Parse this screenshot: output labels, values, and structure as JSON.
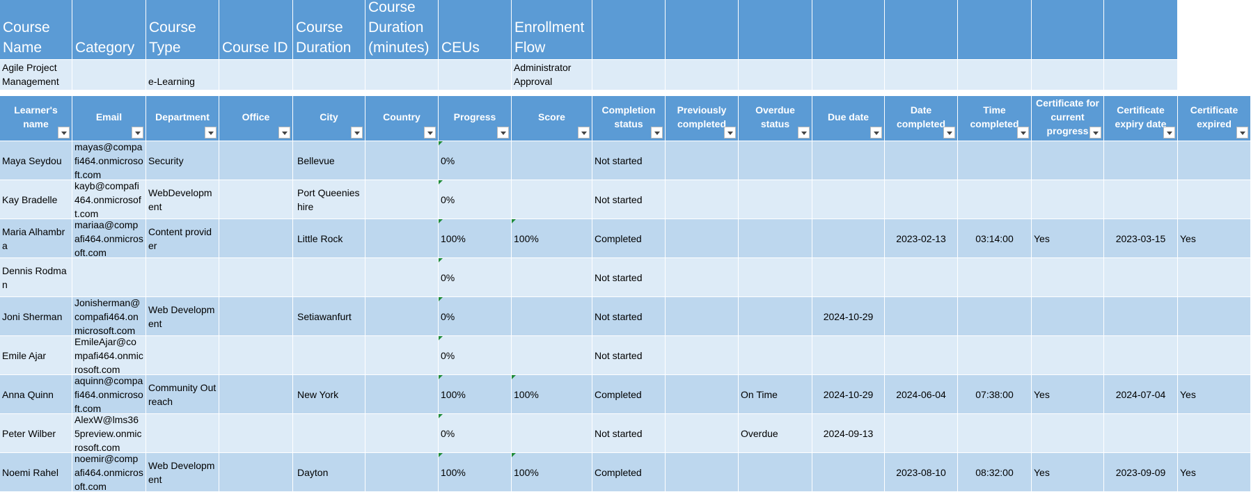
{
  "course": {
    "fields": [
      {
        "label": "Course Name",
        "value": "Agile Project Management"
      },
      {
        "label": "Category"
      },
      {
        "label": "Course Type",
        "value": "e-Learning"
      },
      {
        "label": "Course ID"
      },
      {
        "label": "Course Duration"
      },
      {
        "label": "Course Duration (minutes)"
      },
      {
        "label": "CEUs"
      },
      {
        "label": "Enrollment Flow",
        "value": "Administrator Approval"
      }
    ]
  },
  "learners": {
    "columns": [
      "Learner's name",
      "Email",
      "Department",
      "Office",
      "City",
      "Country",
      "Progress",
      "Score",
      "Completion status",
      "Previously completed",
      "Overdue status",
      "Due date",
      "Date completed",
      "Time completed",
      "Certificate for current progress",
      "Certificate expiry date",
      "Certificate expired"
    ],
    "rows": [
      [
        "Maya Seydou",
        "mayas@compafi464.onmicrosoft.com",
        "Security",
        null,
        "Bellevue",
        null,
        "0%",
        null,
        "Not started",
        null,
        null,
        null,
        null,
        null,
        null,
        null,
        null
      ],
      [
        "Kay Bradelle",
        "kayb@compafi464.onmicrosoft.com",
        "WebDevelopment",
        null,
        "Port Queenieshire",
        null,
        "0%",
        null,
        "Not started",
        null,
        null,
        null,
        null,
        null,
        null,
        null,
        null
      ],
      [
        "Maria Alhambra",
        "mariaa@compafi464.onmicrosoft.com",
        "Content provider",
        null,
        "Little Rock",
        null,
        "100%",
        "100%",
        "Completed",
        null,
        null,
        null,
        "2023-02-13",
        "03:14:00",
        "Yes",
        "2023-03-15",
        "Yes"
      ],
      [
        "Dennis Rodman",
        null,
        null,
        null,
        null,
        null,
        "0%",
        null,
        "Not started",
        null,
        null,
        null,
        null,
        null,
        null,
        null,
        null
      ],
      [
        "Joni Sherman",
        "Jonisherman@compafi464.onmicrosoft.com",
        "Web Development",
        null,
        "Setiawanfurt",
        null,
        "0%",
        null,
        "Not started",
        null,
        null,
        "2024-10-29",
        null,
        null,
        null,
        null,
        null
      ],
      [
        "Emile Ajar",
        "EmileAjar@compafi464.onmicrosoft.com",
        null,
        null,
        null,
        null,
        "0%",
        null,
        "Not started",
        null,
        null,
        null,
        null,
        null,
        null,
        null,
        null
      ],
      [
        "Anna Quinn",
        "aquinn@compafi464.onmicrosoft.com",
        "Community Outreach",
        null,
        "New York",
        null,
        "100%",
        "100%",
        "Completed",
        null,
        "On Time",
        "2024-10-29",
        "2024-06-04",
        "07:38:00",
        "Yes",
        "2024-07-04",
        "Yes"
      ],
      [
        "Peter Wilber",
        "AlexW@lms365preview.onmicrosoft.com",
        null,
        null,
        null,
        null,
        "0%",
        null,
        "Not started",
        null,
        "Overdue",
        "2024-09-13",
        null,
        null,
        null,
        null,
        null
      ],
      [
        "Noemi Rahel",
        "noemir@compafi464.onmicrosoft.com",
        "Web Development",
        null,
        "Dayton",
        null,
        "100%",
        "100%",
        "Completed",
        null,
        null,
        null,
        "2023-08-10",
        "08:32:00",
        "Yes",
        "2023-09-09",
        "Yes"
      ]
    ]
  }
}
